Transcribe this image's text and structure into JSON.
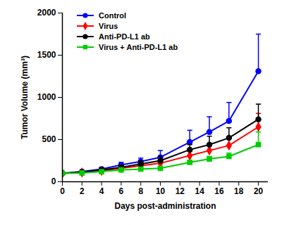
{
  "chart_data": {
    "type": "line",
    "x_label": "Days post-administration",
    "y_label": "Tumor Volume (mm³)",
    "xlim": [
      0,
      21
    ],
    "xticks": [
      0,
      2,
      4,
      6,
      8,
      10,
      12,
      14,
      16,
      18,
      20
    ],
    "ylim": [
      0,
      2000
    ],
    "yticks": [
      0,
      500,
      1000,
      1500,
      2000
    ],
    "grid": false,
    "legend": "top-left",
    "x": [
      0,
      2,
      4,
      6,
      8,
      10,
      13,
      15,
      17,
      20
    ],
    "series": [
      {
        "name": "Control",
        "color": "#0000ff",
        "marker": "circle",
        "values": [
          100,
          120,
          150,
          200,
          240,
          290,
          470,
          590,
          720,
          1310
        ],
        "error": [
          0,
          10,
          20,
          30,
          40,
          80,
          140,
          180,
          220,
          440
        ]
      },
      {
        "name": "Virus",
        "color": "#ff0000",
        "marker": "diamond",
        "values": [
          100,
          110,
          130,
          160,
          190,
          220,
          310,
          370,
          430,
          650
        ],
        "error": [
          0,
          10,
          15,
          20,
          30,
          30,
          50,
          70,
          90,
          160
        ]
      },
      {
        "name": "Anti-PD-L1 ab",
        "color": "#000000",
        "marker": "circle",
        "values": [
          100,
          115,
          140,
          170,
          210,
          250,
          380,
          440,
          520,
          740
        ],
        "error": [
          0,
          10,
          20,
          30,
          40,
          50,
          60,
          100,
          120,
          180
        ]
      },
      {
        "name": "Virus + Anti-PD-L1 ab",
        "color": "#00cc00",
        "marker": "square",
        "values": [
          100,
          105,
          120,
          140,
          150,
          160,
          230,
          270,
          300,
          440
        ],
        "error": [
          0,
          5,
          10,
          10,
          15,
          20,
          25,
          30,
          40,
          150
        ]
      }
    ]
  }
}
